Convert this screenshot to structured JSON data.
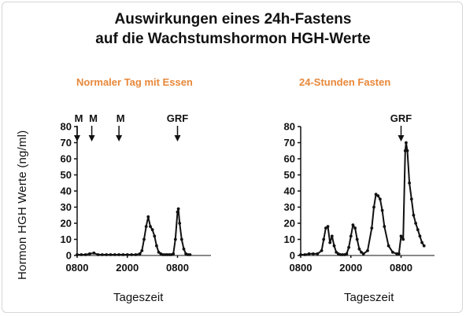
{
  "title": {
    "line1": "Auswirkungen eines 24h-Fastens",
    "line2": "auf die Wachstumshormon HGH-Werte"
  },
  "ylabel": "Hormon HGH Werte  (ng/ml)",
  "colors": {
    "subtitle": "#e8883a",
    "ink": "#111111"
  },
  "chart_data": [
    {
      "type": "line",
      "title": "Normaler Tag mit Essen",
      "xlabel": "Tageszeit",
      "ylabel": "Hormon HGH Werte  (ng/ml)",
      "x_ticks": [
        "0800",
        "2000",
        "0800"
      ],
      "y_ticks": [
        0,
        10,
        20,
        30,
        40,
        50,
        60,
        70,
        80
      ],
      "xlim": [
        0,
        32
      ],
      "ylim": [
        0,
        80
      ],
      "annotations": [
        {
          "label": "M",
          "x": 0
        },
        {
          "label": "M",
          "x": 3.5
        },
        {
          "label": "M",
          "x": 10
        },
        {
          "label": "GRF",
          "x": 24
        }
      ],
      "series": [
        {
          "x": [
            0,
            1,
            2,
            3,
            4,
            5,
            6,
            7,
            8,
            9,
            10,
            11,
            12,
            13,
            14,
            15,
            15.5,
            16,
            16.5,
            17,
            17.5,
            18,
            18.5,
            19,
            19.5,
            20,
            20.5,
            21,
            21.5,
            22,
            22.5,
            23,
            23.5,
            24,
            24.2,
            24.5,
            25,
            25.5,
            26,
            26.5,
            27
          ],
          "y": [
            0.5,
            0.5,
            0.5,
            1,
            1.5,
            0.5,
            0.5,
            0.5,
            0.5,
            0.5,
            0.5,
            0.5,
            0.5,
            0.5,
            0.5,
            1,
            3,
            10,
            18,
            24,
            18,
            16,
            12,
            6,
            2,
            1,
            0.5,
            0.5,
            0.5,
            0.5,
            0.5,
            1,
            10,
            27,
            29,
            20,
            10,
            4,
            1,
            0.5,
            0.5
          ]
        }
      ]
    },
    {
      "type": "line",
      "title": "24-Stunden Fasten",
      "xlabel": "Tageszeit",
      "ylabel": "Hormon HGH Werte  (ng/ml)",
      "x_ticks": [
        "0800",
        "2000",
        "0800"
      ],
      "y_ticks": [
        0,
        10,
        20,
        30,
        40,
        50,
        60,
        70,
        80
      ],
      "xlim": [
        0,
        32
      ],
      "ylim": [
        0,
        80
      ],
      "annotations": [
        {
          "label": "GRF",
          "x": 24
        }
      ],
      "series": [
        {
          "x": [
            0,
            1,
            2,
            3,
            4,
            5,
            5.5,
            6,
            6.5,
            7,
            7.5,
            8,
            8.5,
            9,
            9.5,
            10,
            10.5,
            11,
            11.5,
            12,
            12.5,
            13,
            13.5,
            14,
            14.5,
            15,
            16,
            17,
            17.5,
            18,
            18.5,
            19,
            19.5,
            20,
            21,
            22,
            23,
            23.5,
            24,
            24.5,
            25,
            25.2,
            25.5,
            26,
            26.5,
            27,
            27.5,
            28,
            28.5,
            29,
            29.5
          ],
          "y": [
            0.5,
            0.5,
            1,
            1,
            1,
            3,
            10,
            17,
            18,
            8,
            12,
            6,
            2,
            1,
            0.5,
            0.5,
            0.5,
            1,
            5,
            12,
            19,
            17,
            10,
            4,
            2,
            1,
            3,
            17,
            30,
            38,
            37,
            35,
            28,
            18,
            6,
            2,
            1,
            1,
            12,
            10,
            65,
            70,
            65,
            45,
            35,
            25,
            20,
            16,
            12,
            8,
            6
          ]
        }
      ]
    }
  ]
}
